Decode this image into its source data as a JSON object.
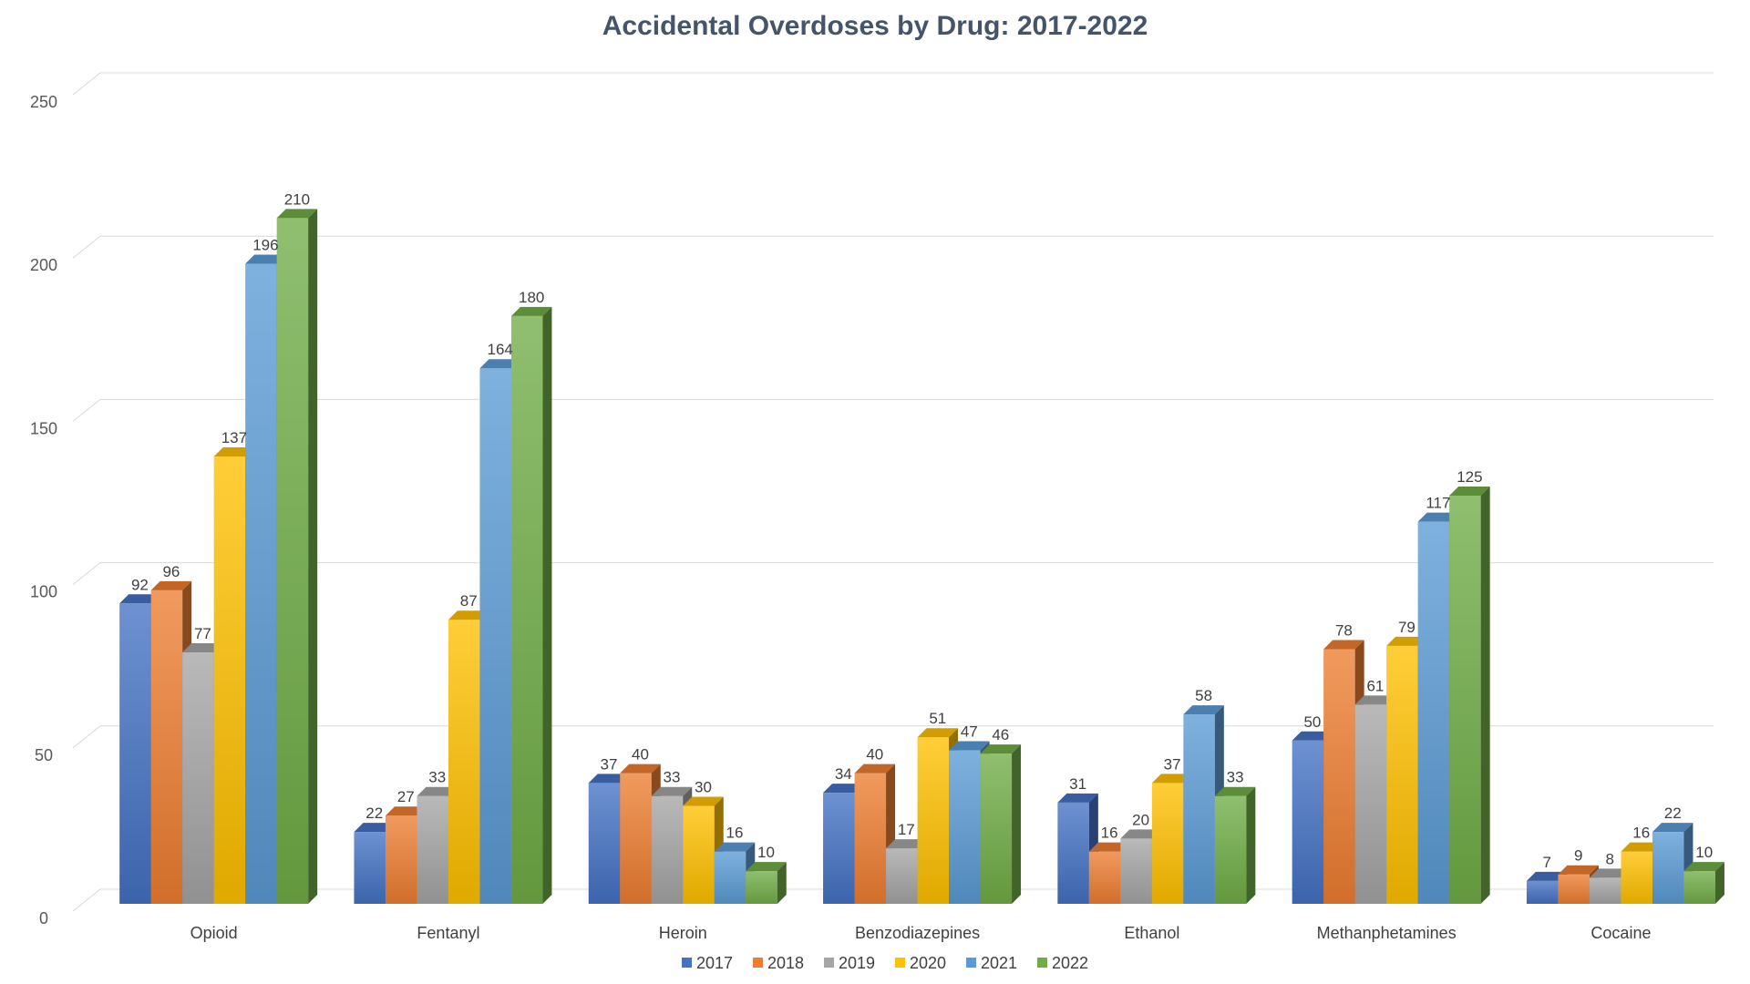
{
  "chart_data": {
    "type": "bar",
    "title": "Accidental Overdoses by Drug: 2017-2022",
    "xlabel": "",
    "ylabel": "",
    "ylim": [
      0,
      250
    ],
    "yticks": [
      0,
      50,
      100,
      150,
      200,
      250
    ],
    "grid": true,
    "three_d": true,
    "legend_position": "bottom",
    "categories": [
      "Opioid",
      "Fentanyl",
      "Heroin",
      "Benzodiazepines",
      "Ethanol",
      "Methanphetamines",
      "Cocaine"
    ],
    "series": [
      {
        "name": "2017",
        "color": "#4472c4",
        "values": [
          92,
          22,
          37,
          34,
          31,
          50,
          7
        ]
      },
      {
        "name": "2018",
        "color": "#ed7d31",
        "values": [
          96,
          27,
          40,
          40,
          16,
          78,
          9
        ]
      },
      {
        "name": "2019",
        "color": "#a5a5a5",
        "values": [
          77,
          33,
          33,
          17,
          20,
          61,
          8
        ]
      },
      {
        "name": "2020",
        "color": "#ffc000",
        "values": [
          137,
          87,
          30,
          51,
          37,
          79,
          16
        ]
      },
      {
        "name": "2021",
        "color": "#5b9bd5",
        "values": [
          196,
          164,
          16,
          47,
          58,
          117,
          22
        ]
      },
      {
        "name": "2022",
        "color": "#70ad47",
        "values": [
          210,
          180,
          10,
          46,
          33,
          125,
          10
        ]
      }
    ]
  }
}
